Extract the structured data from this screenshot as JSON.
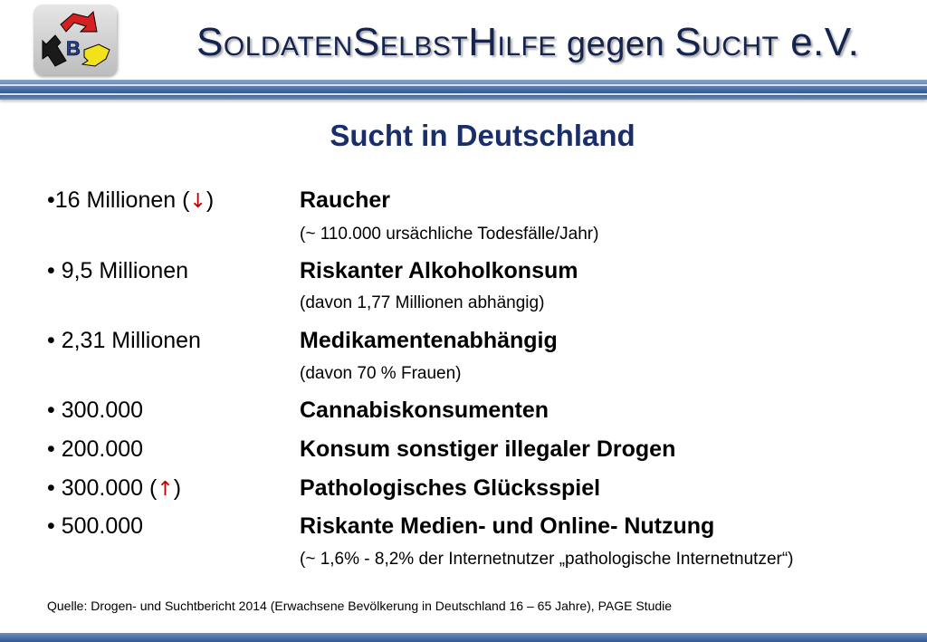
{
  "header": {
    "logo_letter": "B",
    "org_parts": [
      "S",
      "OLDATEN",
      "S",
      "ELBST",
      "H",
      "ILFE",
      " gegen ",
      "S",
      "UCHT",
      " e.V."
    ]
  },
  "title": "Sucht in Deutschland",
  "stats": [
    {
      "label": "•16 Millionen (",
      "arrow": "↓",
      "label_end": ")",
      "value": "Raucher",
      "note": "(~ 110.000 ursächliche Todesfälle/Jahr)"
    },
    {
      "label": "• 9,5 Millionen",
      "value": "Riskanter Alkoholkonsum",
      "note": "(davon 1,77 Millionen abhängig)"
    },
    {
      "label": "• 2,31 Millionen",
      "value": "Medikamentenabhängig",
      "note": "(davon 70 % Frauen)"
    },
    {
      "label": "• 300.000",
      "value": "Cannabiskonsumenten"
    },
    {
      "label": "• 200.000",
      "value": "Konsum sonstiger illegaler Drogen"
    },
    {
      "label": "• 300.000 (",
      "arrow": "↑",
      "label_end": ")",
      "value": "Pathologisches Glücksspiel"
    },
    {
      "label": "• 500.000",
      "value": "Riskante Medien- und Online- Nutzung",
      "note": "(~ 1,6% - 8,2% der Internetnutzer „pathologische Internetnutzer“)"
    }
  ],
  "source": "Quelle: Drogen- und Suchtbericht 2014  (Erwachsene Bevölkerung in Deutschland 16 – 65 Jahre), PAGE Studie",
  "colors": {
    "title": "#1a2f6a",
    "band": "#2f5791",
    "arrow": "#c00000",
    "logo_red": "#d42020",
    "logo_yellow": "#f2e21a",
    "logo_black": "#1a1a1a",
    "logo_blue": "#1f3f9a"
  }
}
